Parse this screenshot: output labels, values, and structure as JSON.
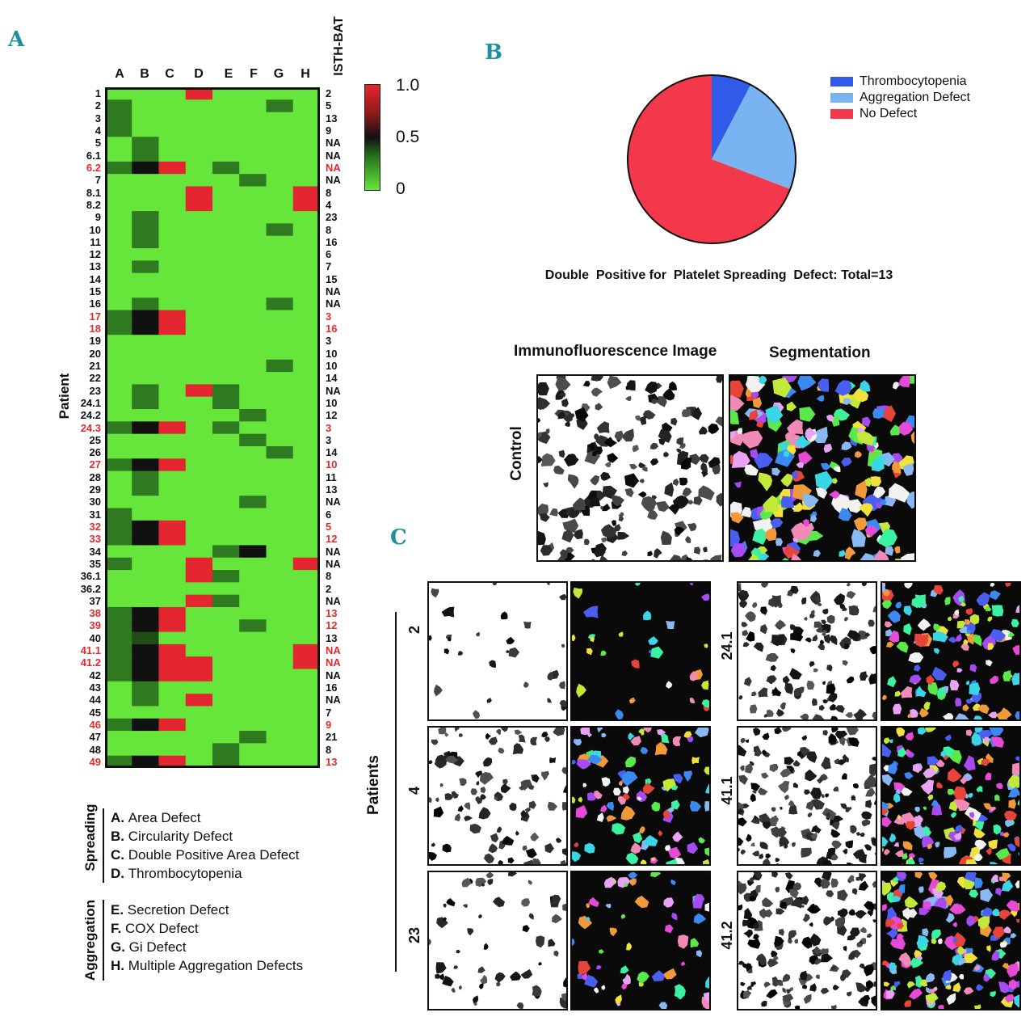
{
  "panels": {
    "a": "A",
    "b": "B",
    "c": "C"
  },
  "heatmap": {
    "columns": [
      "A",
      "B",
      "C",
      "D",
      "E",
      "F",
      "G",
      "H"
    ],
    "isth_header": "ISTH-BAT",
    "patient_axis": "Patient",
    "colorbar": {
      "max": "1.0",
      "mid": "0.5",
      "min": "0"
    },
    "rows": [
      {
        "label": "1",
        "isth": "2",
        "red": false
      },
      {
        "label": "2",
        "isth": "5",
        "red": false
      },
      {
        "label": "3",
        "isth": "13",
        "red": false
      },
      {
        "label": "4",
        "isth": "9",
        "red": false
      },
      {
        "label": "5",
        "isth": "NA",
        "red": false
      },
      {
        "label": "6.1",
        "isth": "NA",
        "red": false
      },
      {
        "label": "6.2",
        "isth": "NA",
        "red": true
      },
      {
        "label": "7",
        "isth": "NA",
        "red": false
      },
      {
        "label": "8.1",
        "isth": "8",
        "red": false
      },
      {
        "label": "8.2",
        "isth": "4",
        "red": false
      },
      {
        "label": "9",
        "isth": "23",
        "red": false
      },
      {
        "label": "10",
        "isth": "8",
        "red": false
      },
      {
        "label": "11",
        "isth": "16",
        "red": false
      },
      {
        "label": "12",
        "isth": "6",
        "red": false
      },
      {
        "label": "13",
        "isth": "7",
        "red": false
      },
      {
        "label": "14",
        "isth": "15",
        "red": false
      },
      {
        "label": "15",
        "isth": "NA",
        "red": false
      },
      {
        "label": "16",
        "isth": "NA",
        "red": false
      },
      {
        "label": "17",
        "isth": "3",
        "red": true
      },
      {
        "label": "18",
        "isth": "16",
        "red": true
      },
      {
        "label": "19",
        "isth": "3",
        "red": false
      },
      {
        "label": "20",
        "isth": "10",
        "red": false
      },
      {
        "label": "21",
        "isth": "10",
        "red": false
      },
      {
        "label": "22",
        "isth": "14",
        "red": false
      },
      {
        "label": "23",
        "isth": "NA",
        "red": false
      },
      {
        "label": "24.1",
        "isth": "10",
        "red": false
      },
      {
        "label": "24.2",
        "isth": "12",
        "red": false
      },
      {
        "label": "24.3",
        "isth": "3",
        "red": true
      },
      {
        "label": "25",
        "isth": "3",
        "red": false
      },
      {
        "label": "26",
        "isth": "14",
        "red": false
      },
      {
        "label": "27",
        "isth": "10",
        "red": true
      },
      {
        "label": "28",
        "isth": "11",
        "red": false
      },
      {
        "label": "29",
        "isth": "13",
        "red": false
      },
      {
        "label": "30",
        "isth": "NA",
        "red": false
      },
      {
        "label": "31",
        "isth": "6",
        "red": false
      },
      {
        "label": "32",
        "isth": "5",
        "red": true
      },
      {
        "label": "33",
        "isth": "12",
        "red": true
      },
      {
        "label": "34",
        "isth": "NA",
        "red": false
      },
      {
        "label": "35",
        "isth": "NA",
        "red": false
      },
      {
        "label": "36.1",
        "isth": "8",
        "red": false
      },
      {
        "label": "36.2",
        "isth": "2",
        "red": false
      },
      {
        "label": "37",
        "isth": "NA",
        "red": false
      },
      {
        "label": "38",
        "isth": "13",
        "red": true
      },
      {
        "label": "39",
        "isth": "12",
        "red": true
      },
      {
        "label": "40",
        "isth": "13",
        "red": false
      },
      {
        "label": "41.1",
        "isth": "NA",
        "red": true
      },
      {
        "label": "41.2",
        "isth": "NA",
        "red": true
      },
      {
        "label": "42",
        "isth": "NA",
        "red": false
      },
      {
        "label": "43",
        "isth": "16",
        "red": false
      },
      {
        "label": "44",
        "isth": "NA",
        "red": false
      },
      {
        "label": "45",
        "isth": "7",
        "red": false
      },
      {
        "label": "46",
        "isth": "9",
        "red": true
      },
      {
        "label": "47",
        "isth": "21",
        "red": false
      },
      {
        "label": "48",
        "isth": "8",
        "red": false
      },
      {
        "label": "49",
        "isth": "13",
        "red": true
      }
    ],
    "values": [
      [
        0,
        0,
        0,
        1,
        0,
        0,
        0,
        0
      ],
      [
        0.3,
        0,
        0,
        0,
        0,
        0,
        0.3,
        0
      ],
      [
        0.3,
        0,
        0,
        0,
        0,
        0,
        0,
        0
      ],
      [
        0.3,
        0,
        0,
        0,
        0,
        0,
        0,
        0
      ],
      [
        0,
        0.3,
        0,
        0,
        0,
        0,
        0,
        0
      ],
      [
        0,
        0.3,
        0,
        0,
        0,
        0,
        0,
        0
      ],
      [
        0.3,
        0.5,
        1,
        0,
        0.3,
        0,
        0,
        0
      ],
      [
        0,
        0,
        0,
        0,
        0,
        0.3,
        0,
        0
      ],
      [
        0,
        0,
        0,
        1,
        0,
        0,
        0,
        1
      ],
      [
        0,
        0,
        0,
        1,
        0,
        0,
        0,
        1
      ],
      [
        0,
        0.3,
        0,
        0,
        0,
        0,
        0,
        0
      ],
      [
        0,
        0.3,
        0,
        0,
        0,
        0,
        0.3,
        0
      ],
      [
        0,
        0.3,
        0,
        0,
        0,
        0,
        0,
        0
      ],
      [
        0,
        0,
        0,
        0,
        0,
        0,
        0,
        0
      ],
      [
        0,
        0.3,
        0,
        0,
        0,
        0,
        0,
        0
      ],
      [
        0,
        0,
        0,
        0,
        0,
        0,
        0,
        0
      ],
      [
        0,
        0,
        0,
        0,
        0,
        0,
        0,
        0
      ],
      [
        0,
        0.3,
        0,
        0,
        0,
        0,
        0.3,
        0
      ],
      [
        0.3,
        0.5,
        1,
        0,
        0,
        0,
        0,
        0
      ],
      [
        0.3,
        0.5,
        1,
        0,
        0,
        0,
        0,
        0
      ],
      [
        0,
        0,
        0,
        0,
        0,
        0,
        0,
        0
      ],
      [
        0,
        0,
        0,
        0,
        0,
        0,
        0,
        0
      ],
      [
        0,
        0,
        0,
        0,
        0,
        0,
        0.3,
        0
      ],
      [
        0,
        0,
        0,
        0,
        0,
        0,
        0,
        0
      ],
      [
        0,
        0.3,
        0,
        1,
        0.3,
        0,
        0,
        0
      ],
      [
        0,
        0.3,
        0,
        0,
        0.3,
        0,
        0,
        0
      ],
      [
        0,
        0,
        0,
        0,
        0,
        0.3,
        0,
        0
      ],
      [
        0.3,
        0.5,
        1,
        0,
        0.3,
        0,
        0,
        0
      ],
      [
        0,
        0,
        0,
        0,
        0,
        0.3,
        0,
        0
      ],
      [
        0,
        0,
        0,
        0,
        0,
        0,
        0.3,
        0
      ],
      [
        0.3,
        0.5,
        1,
        0,
        0,
        0,
        0,
        0
      ],
      [
        0,
        0.3,
        0,
        0,
        0,
        0,
        0,
        0
      ],
      [
        0,
        0.3,
        0,
        0,
        0,
        0,
        0,
        0
      ],
      [
        0,
        0,
        0,
        0,
        0,
        0.3,
        0,
        0
      ],
      [
        0.3,
        0,
        0,
        0,
        0,
        0,
        0,
        0
      ],
      [
        0.3,
        0.5,
        1,
        0,
        0,
        0,
        0,
        0
      ],
      [
        0.3,
        0.5,
        1,
        0,
        0,
        0,
        0,
        0
      ],
      [
        0,
        0,
        0,
        0,
        0.3,
        0.5,
        0,
        0
      ],
      [
        0.3,
        0,
        0,
        1,
        0,
        0,
        0,
        1
      ],
      [
        0,
        0,
        0,
        1,
        0.3,
        0,
        0,
        0
      ],
      [
        0,
        0,
        0,
        0,
        0,
        0,
        0,
        0
      ],
      [
        0,
        0,
        0,
        1,
        0.3,
        0,
        0,
        0
      ],
      [
        0.3,
        0.5,
        1,
        0,
        0,
        0,
        0,
        0
      ],
      [
        0.3,
        0.5,
        1,
        0,
        0,
        0.3,
        0,
        0
      ],
      [
        0.3,
        0.4,
        0,
        0,
        0,
        0,
        0,
        0
      ],
      [
        0.3,
        0.5,
        1,
        0,
        0,
        0,
        0,
        1
      ],
      [
        0.3,
        0.5,
        1,
        1,
        0,
        0,
        0,
        1
      ],
      [
        0.3,
        0.5,
        1,
        1,
        0,
        0,
        0,
        0
      ],
      [
        0,
        0.3,
        0,
        0,
        0,
        0,
        0,
        0
      ],
      [
        0,
        0.3,
        0,
        1,
        0,
        0,
        0,
        0
      ],
      [
        0,
        0,
        0,
        0,
        0,
        0,
        0,
        0
      ],
      [
        0.3,
        0.5,
        1,
        0,
        0,
        0,
        0,
        0
      ],
      [
        0,
        0,
        0,
        0,
        0,
        0.3,
        0,
        0
      ],
      [
        0,
        0,
        0,
        0,
        0.3,
        0,
        0,
        0
      ],
      [
        0.3,
        0.5,
        1,
        0,
        0.3,
        0,
        0,
        0
      ]
    ]
  },
  "legend": {
    "spreading_title": "Spreading",
    "aggregation_title": "Aggregation",
    "spreading": [
      {
        "key": "A.",
        "text": "Area Defect"
      },
      {
        "key": "B.",
        "text": "Circularity Defect"
      },
      {
        "key": "C.",
        "text": "Double Positive Area Defect"
      },
      {
        "key": "D.",
        "text": "Thrombocytopenia"
      }
    ],
    "aggregation": [
      {
        "key": "E.",
        "text": "Secretion Defect"
      },
      {
        "key": "F.",
        "text": "COX Defect"
      },
      {
        "key": "G.",
        "text": "Gi Defect"
      },
      {
        "key": "H.",
        "text": "Multiple Aggregation Defects"
      }
    ]
  },
  "chart_data": {
    "type": "pie",
    "title": "Double  Positive for  Platelet Spreading  Defect: Total=13",
    "slices": [
      {
        "name": "Thrombocytopenia",
        "value": 1,
        "color": "#2f5be8"
      },
      {
        "name": "Aggregation Defect",
        "value": 3,
        "color": "#7ab3f2"
      },
      {
        "name": "No Defect",
        "value": 9,
        "color": "#f2384a"
      }
    ],
    "legend_position": "right"
  },
  "imaging": {
    "col_if": "Immunofluorescence Image",
    "col_seg": "Segmentation",
    "control_label": "Control",
    "patients_label": "Patients",
    "patients_left": [
      "2",
      "4",
      "23"
    ],
    "patients_right": [
      "24.1",
      "41.1",
      "41.2"
    ]
  },
  "colors": {
    "green": "#66e53a",
    "dark_green": "#2f7a20",
    "black": "#111111",
    "red": "#e3262f",
    "panel_letter": "#1f8fa0"
  }
}
